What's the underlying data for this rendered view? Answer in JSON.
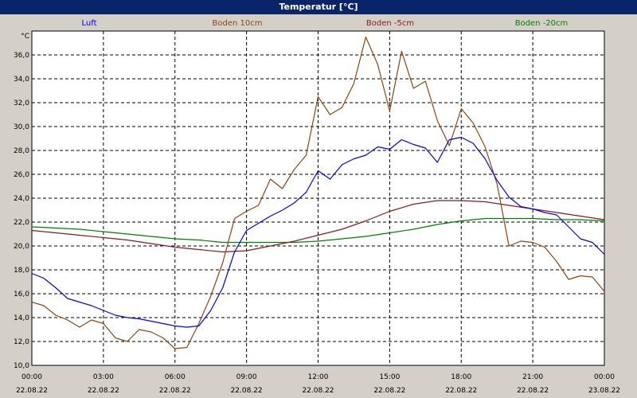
{
  "window": {
    "title": "Temperatur [°C]"
  },
  "colors": {
    "background": "#d4d0c8",
    "plot_background": "#ffffff",
    "title_bar": "#0a246a",
    "grid": "#000000"
  },
  "chart_data": {
    "type": "line",
    "title": "Temperatur [°C]",
    "y_unit": "°C",
    "ylim": [
      10,
      38
    ],
    "y_ticks": [
      "10,0",
      "12,0",
      "14,0",
      "16,0",
      "18,0",
      "20,0",
      "22,0",
      "24,0",
      "26,0",
      "28,0",
      "30,0",
      "32,0",
      "34,0",
      "36,0"
    ],
    "x_ticks": [
      {
        "time": "00:00",
        "date": "22.08.22"
      },
      {
        "time": "03:00",
        "date": "22.08.22"
      },
      {
        "time": "06:00",
        "date": "22.08.22"
      },
      {
        "time": "09:00",
        "date": "22.08.22"
      },
      {
        "time": "12:00",
        "date": "22.08.22"
      },
      {
        "time": "15:00",
        "date": "22.08.22"
      },
      {
        "time": "18:00",
        "date": "22.08.22"
      },
      {
        "time": "21:00",
        "date": "22.08.22"
      },
      {
        "time": "00:00",
        "date": "23.08.22"
      }
    ],
    "xlim": [
      "2022-08-22 00:00",
      "2022-08-23 00:00"
    ],
    "grid": true,
    "legend_position": "top",
    "series": [
      {
        "name": "Luft",
        "color": "#0000ff",
        "x": [
          "2022-08-22 00:00",
          "2022-08-22 00:30",
          "2022-08-22 01:00",
          "2022-08-22 01:30",
          "2022-08-22 02:00",
          "2022-08-22 02:30",
          "2022-08-22 03:00",
          "2022-08-22 03:30",
          "2022-08-22 04:00",
          "2022-08-22 04:30",
          "2022-08-22 05:00",
          "2022-08-22 05:30",
          "2022-08-22 06:00",
          "2022-08-22 06:30",
          "2022-08-22 07:00",
          "2022-08-22 07:30",
          "2022-08-22 08:00",
          "2022-08-22 08:30",
          "2022-08-22 09:00",
          "2022-08-22 09:30",
          "2022-08-22 10:00",
          "2022-08-22 10:30",
          "2022-08-22 11:00",
          "2022-08-22 11:30",
          "2022-08-22 12:00",
          "2022-08-22 12:30",
          "2022-08-22 13:00",
          "2022-08-22 13:30",
          "2022-08-22 14:00",
          "2022-08-22 14:30",
          "2022-08-22 15:00",
          "2022-08-22 15:30",
          "2022-08-22 16:00",
          "2022-08-22 16:30",
          "2022-08-22 17:00",
          "2022-08-22 17:30",
          "2022-08-22 18:00",
          "2022-08-22 18:30",
          "2022-08-22 19:00",
          "2022-08-22 19:30",
          "2022-08-22 20:00",
          "2022-08-22 20:30",
          "2022-08-22 21:00",
          "2022-08-22 21:30",
          "2022-08-22 22:00",
          "2022-08-22 22:30",
          "2022-08-22 23:00",
          "2022-08-22 23:30",
          "2022-08-23 00:00"
        ],
        "values": [
          17.7,
          17.3,
          16.5,
          15.6,
          15.3,
          15.0,
          14.6,
          14.2,
          14.0,
          13.9,
          13.7,
          13.5,
          13.3,
          13.2,
          13.3,
          14.6,
          16.5,
          19.5,
          21.3,
          21.9,
          22.5,
          23.0,
          23.6,
          24.5,
          26.3,
          25.6,
          26.8,
          27.3,
          27.6,
          28.3,
          28.1,
          28.9,
          28.5,
          28.2,
          27.0,
          28.9,
          29.1,
          28.6,
          27.3,
          25.5,
          24.1,
          23.3,
          23.1,
          22.8,
          22.6,
          21.6,
          20.6,
          20.3,
          19.3
        ]
      },
      {
        "name": "Boden 10cm",
        "color": "#8b4513",
        "x": [
          "2022-08-22 00:00",
          "2022-08-22 00:30",
          "2022-08-22 01:00",
          "2022-08-22 01:30",
          "2022-08-22 02:00",
          "2022-08-22 02:30",
          "2022-08-22 03:00",
          "2022-08-22 03:30",
          "2022-08-22 04:00",
          "2022-08-22 04:30",
          "2022-08-22 05:00",
          "2022-08-22 05:30",
          "2022-08-22 06:00",
          "2022-08-22 06:30",
          "2022-08-22 07:00",
          "2022-08-22 07:30",
          "2022-08-22 08:00",
          "2022-08-22 08:30",
          "2022-08-22 09:00",
          "2022-08-22 09:30",
          "2022-08-22 10:00",
          "2022-08-22 10:30",
          "2022-08-22 11:00",
          "2022-08-22 11:30",
          "2022-08-22 12:00",
          "2022-08-22 12:30",
          "2022-08-22 13:00",
          "2022-08-22 13:30",
          "2022-08-22 14:00",
          "2022-08-22 14:30",
          "2022-08-22 15:00",
          "2022-08-22 15:30",
          "2022-08-22 16:00",
          "2022-08-22 16:30",
          "2022-08-22 17:00",
          "2022-08-22 17:30",
          "2022-08-22 18:00",
          "2022-08-22 18:30",
          "2022-08-22 19:00",
          "2022-08-22 19:30",
          "2022-08-22 20:00",
          "2022-08-22 20:30",
          "2022-08-22 21:00",
          "2022-08-22 21:30",
          "2022-08-22 22:00",
          "2022-08-22 22:30",
          "2022-08-22 23:00",
          "2022-08-22 23:30",
          "2022-08-23 00:00"
        ],
        "values": [
          15.3,
          15.0,
          14.2,
          13.8,
          13.2,
          13.8,
          13.5,
          12.3,
          12.0,
          13.0,
          12.8,
          12.3,
          11.4,
          11.5,
          13.5,
          15.8,
          18.6,
          22.3,
          22.9,
          23.4,
          25.6,
          24.8,
          26.4,
          27.6,
          32.5,
          31.0,
          31.6,
          33.6,
          37.5,
          35.2,
          31.3,
          36.3,
          33.2,
          33.8,
          30.5,
          28.4,
          31.5,
          30.3,
          28.3,
          25.2,
          20.0,
          20.4,
          20.3,
          19.9,
          18.7,
          17.2,
          17.5,
          17.4,
          16.2
        ]
      },
      {
        "name": "Boden -5cm",
        "color": "#8b1a1a",
        "x": [
          "2022-08-22 00:00",
          "2022-08-22 01:00",
          "2022-08-22 02:00",
          "2022-08-22 03:00",
          "2022-08-22 04:00",
          "2022-08-22 05:00",
          "2022-08-22 06:00",
          "2022-08-22 07:00",
          "2022-08-22 08:00",
          "2022-08-22 09:00",
          "2022-08-22 10:00",
          "2022-08-22 11:00",
          "2022-08-22 12:00",
          "2022-08-22 13:00",
          "2022-08-22 14:00",
          "2022-08-22 15:00",
          "2022-08-22 16:00",
          "2022-08-22 17:00",
          "2022-08-22 18:00",
          "2022-08-22 19:00",
          "2022-08-22 20:00",
          "2022-08-22 21:00",
          "2022-08-22 22:00",
          "2022-08-22 23:00",
          "2022-08-23 00:00"
        ],
        "values": [
          21.3,
          21.1,
          20.9,
          20.7,
          20.5,
          20.2,
          19.9,
          19.7,
          19.5,
          19.6,
          20.0,
          20.4,
          20.9,
          21.4,
          22.1,
          22.9,
          23.5,
          23.8,
          23.8,
          23.7,
          23.4,
          23.1,
          22.8,
          22.5,
          22.2
        ]
      },
      {
        "name": "Boden -20cm",
        "color": "#008000",
        "x": [
          "2022-08-22 00:00",
          "2022-08-22 01:00",
          "2022-08-22 02:00",
          "2022-08-22 03:00",
          "2022-08-22 04:00",
          "2022-08-22 05:00",
          "2022-08-22 06:00",
          "2022-08-22 07:00",
          "2022-08-22 08:00",
          "2022-08-22 09:00",
          "2022-08-22 10:00",
          "2022-08-22 11:00",
          "2022-08-22 12:00",
          "2022-08-22 13:00",
          "2022-08-22 14:00",
          "2022-08-22 15:00",
          "2022-08-22 16:00",
          "2022-08-22 17:00",
          "2022-08-22 18:00",
          "2022-08-22 19:00",
          "2022-08-22 20:00",
          "2022-08-22 21:00",
          "2022-08-22 22:00",
          "2022-08-22 23:00",
          "2022-08-23 00:00"
        ],
        "values": [
          21.6,
          21.5,
          21.4,
          21.2,
          21.0,
          20.8,
          20.6,
          20.5,
          20.3,
          20.3,
          20.3,
          20.3,
          20.4,
          20.6,
          20.8,
          21.1,
          21.4,
          21.8,
          22.1,
          22.3,
          22.3,
          22.3,
          22.2,
          22.2,
          22.1
        ]
      }
    ]
  }
}
